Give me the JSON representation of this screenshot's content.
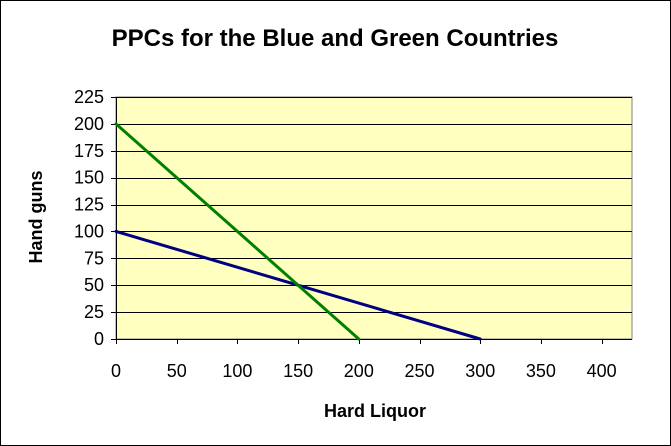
{
  "chart_data": {
    "type": "line",
    "title": "PPCs for the Blue and Green Countries",
    "xlabel": "Hard Liquor",
    "ylabel": "Hand guns",
    "xlim": [
      0,
      425
    ],
    "ylim": [
      0,
      225
    ],
    "xticks": [
      0,
      50,
      100,
      150,
      200,
      250,
      300,
      350,
      400
    ],
    "yticks": [
      0,
      25,
      50,
      75,
      100,
      125,
      150,
      175,
      200,
      225
    ],
    "grid": "horizontal",
    "legend": "none",
    "plot_background": "#FFFFC0",
    "series": [
      {
        "color": "#000080",
        "x": [
          0,
          300
        ],
        "y": [
          100,
          0
        ]
      },
      {
        "color": "#008000",
        "x": [
          0,
          200
        ],
        "y": [
          200,
          0
        ]
      }
    ]
  }
}
